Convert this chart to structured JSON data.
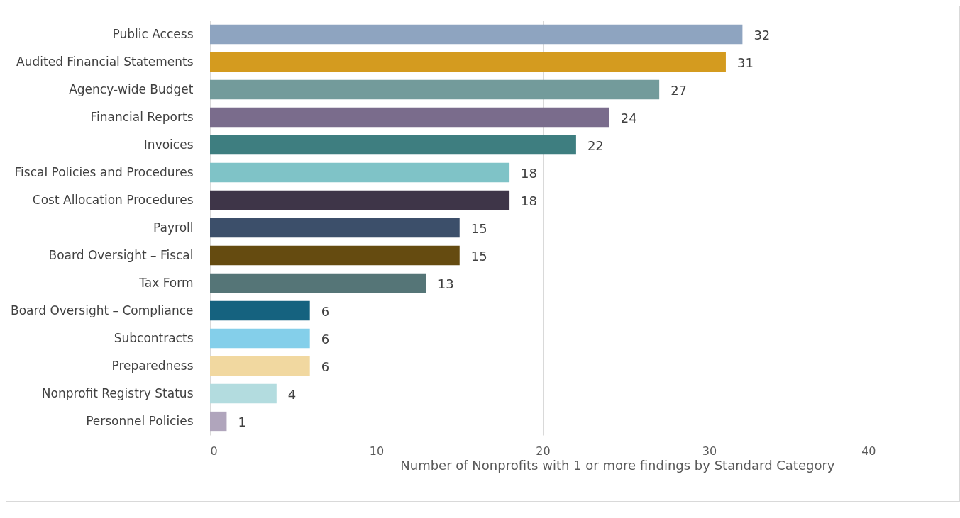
{
  "chart_data": {
    "type": "bar",
    "orientation": "horizontal",
    "xlabel": "Number of Nonprofits with 1 or more findings by Standard Category",
    "categories": [
      "Public Access",
      "Audited Financial Statements",
      "Agency-wide Budget",
      "Financial Reports",
      "Invoices",
      "Fiscal Policies and Procedures",
      "Cost Allocation Procedures",
      "Payroll",
      "Board Oversight – Fiscal",
      "Tax Form",
      "Board Oversight – Compliance",
      "Subcontracts",
      "Preparedness",
      "Nonprofit Registry Status",
      "Personnel Policies"
    ],
    "values": [
      32,
      31,
      27,
      24,
      22,
      18,
      18,
      15,
      15,
      13,
      6,
      6,
      6,
      4,
      1
    ],
    "colors": [
      "#8ea4c0",
      "#d49b1f",
      "#739b9b",
      "#7a6c8c",
      "#3e7e80",
      "#7fc3c7",
      "#3e3548",
      "#3c4f6a",
      "#654b10",
      "#557577",
      "#15627f",
      "#84cfea",
      "#f1d8a0",
      "#b3dcdf",
      "#b0a5bc"
    ],
    "xlim": [
      0,
      40
    ],
    "xticks": [
      0,
      10,
      20,
      30,
      40
    ],
    "grid": "x",
    "data_labels": true,
    "legend": false
  }
}
